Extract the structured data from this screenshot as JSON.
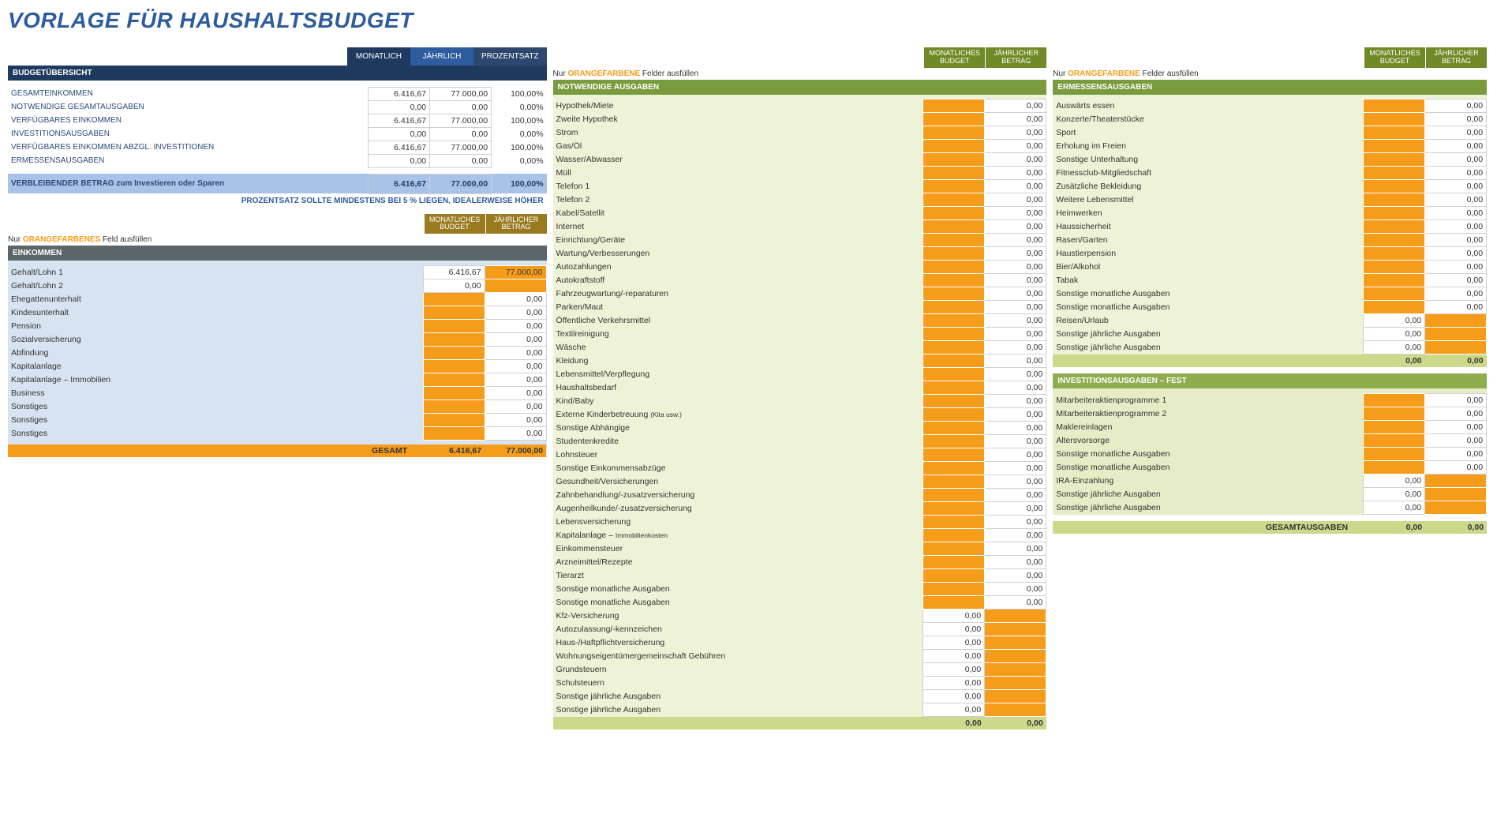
{
  "title": "VORLAGE FÜR HAUSHALTSBUDGET",
  "tabs": {
    "monthly": "MONATLICH",
    "yearly": "JÄHRLICH",
    "percent": "PROZENTSATZ"
  },
  "colhdr": {
    "monthly": "MONATLICHES BUDGET",
    "yearly": "JÄHRLICHER BETRAG"
  },
  "fill_note_prefix": "Nur ",
  "fill_note_orange": "ORANGEFARBENE",
  "fill_note_orange_s": "ORANGEFARBENES",
  "fill_note_suffix": " Felder ausfüllen",
  "fill_note_suffix_s": " Feld ausfüllen",
  "overview": {
    "header": "BUDGETÜBERSICHT",
    "rows": [
      {
        "label": "GESAMTEINKOMMEN",
        "m": "6.416,67",
        "y": "77.000,00",
        "p": "100,00%"
      },
      {
        "label": "NOTWENDIGE GESAMTAUSGABEN",
        "m": "0,00",
        "y": "0,00",
        "p": "0,00%"
      },
      {
        "label": "VERFÜGBARES EINKOMMEN",
        "m": "6.416,67",
        "y": "77.000,00",
        "p": "100,00%"
      },
      {
        "label": "INVESTITIONSAUSGABEN",
        "m": "0,00",
        "y": "0,00",
        "p": "0,00%"
      },
      {
        "label": "VERFÜGBARES EINKOMMEN ABZGL. INVESTITIONEN",
        "m": "6.416,67",
        "y": "77.000,00",
        "p": "100,00%"
      },
      {
        "label": "ERMESSENSAUSGABEN",
        "m": "0,00",
        "y": "0,00",
        "p": "0,00%"
      }
    ],
    "remaining_label": "VERBLEIBENDER BETRAG zum Investieren oder Sparen",
    "remaining": {
      "m": "6.416,67",
      "y": "77.000,00",
      "p": "100,00%"
    },
    "hint": "PROZENTSATZ SOLLTE MINDESTENS BEI 5 % LIEGEN, IDEALERWEISE HÖHER"
  },
  "income": {
    "header": "EINKOMMEN",
    "rows": [
      {
        "label": "Gehalt/Lohn 1",
        "m": "6.416,67",
        "y": "77.000,00",
        "m_orange": false,
        "y_orange": true
      },
      {
        "label": "Gehalt/Lohn 2",
        "m": "0,00",
        "y": "",
        "m_orange": false,
        "y_orange": true
      },
      {
        "label": "Ehegattenunterhalt",
        "m": "",
        "y": "0,00",
        "m_orange": true,
        "y_orange": false
      },
      {
        "label": "Kindesunterhalt",
        "m": "",
        "y": "0,00",
        "m_orange": true,
        "y_orange": false
      },
      {
        "label": "Pension",
        "m": "",
        "y": "0,00",
        "m_orange": true,
        "y_orange": false
      },
      {
        "label": "Sozialversicherung",
        "m": "",
        "y": "0,00",
        "m_orange": true,
        "y_orange": false
      },
      {
        "label": "Abfindung",
        "m": "",
        "y": "0,00",
        "m_orange": true,
        "y_orange": false
      },
      {
        "label": "Kapitalanlage",
        "m": "",
        "y": "0,00",
        "m_orange": true,
        "y_orange": false
      },
      {
        "label": "Kapitalanlage – Immobilien",
        "m": "",
        "y": "0,00",
        "m_orange": true,
        "y_orange": false
      },
      {
        "label": "Business",
        "m": "",
        "y": "0,00",
        "m_orange": true,
        "y_orange": false
      },
      {
        "label": "Sonstiges",
        "m": "",
        "y": "0,00",
        "m_orange": true,
        "y_orange": false
      },
      {
        "label": "Sonstiges",
        "m": "",
        "y": "0,00",
        "m_orange": true,
        "y_orange": false
      },
      {
        "label": "Sonstiges",
        "m": "",
        "y": "0,00",
        "m_orange": true,
        "y_orange": false
      }
    ],
    "total_label": "GESAMT",
    "total_m": "6.416,67",
    "total_y": "77.000,00"
  },
  "necessary": {
    "header": "NOTWENDIGE AUSGABEN",
    "rows": [
      "Hypothek/Miete",
      "Zweite Hypothek",
      "Strom",
      "Gas/Öl",
      "Wasser/Abwasser",
      "Müll",
      "Telefon 1",
      "Telefon 2",
      "Kabel/Satellit",
      "Internet",
      "Einrichtung/Geräte",
      "Wartung/Verbesserungen",
      "Autozahlungen",
      "Autokraftstoff",
      "Fahrzeugwartung/-reparaturen",
      "Parken/Maut",
      "Öffentliche Verkehrsmittel",
      "Textilreinigung",
      "Wäsche",
      "Kleidung",
      "Lebensmittel/Verpflegung",
      "Haushaltsbedarf",
      "Kind/Baby",
      "Externe Kinderbetreuung",
      "Sonstige Abhängige",
      "Studentenkredite",
      "Lohnsteuer",
      "Sonstige Einkommensabzüge",
      "Gesundheit/Versicherungen",
      "Zahnbehandlung/-zusatzversicherung",
      "Augenheilkunde/-zusatzversicherung",
      "Lebensversicherung",
      "Kapitalanlage – Immobilienkosten",
      "Einkommensteuer",
      "Arzneimittel/Rezepte",
      "Tierarzt",
      "Sonstige monatliche Ausgaben",
      "Sonstige monatliche Ausgaben"
    ],
    "rows_yearly": [
      "Kfz-Versicherung",
      "Autozulassung/-kennzeichen",
      "Haus-/Haftpflichtversicherung",
      "Wohnungseigentümergemeinschaft Gebühren",
      "Grundsteuern",
      "Schulsteuern",
      "Sonstige jährliche Ausgaben",
      "Sonstige jährliche Ausgaben"
    ],
    "kita": "(Kita usw.)",
    "zero": "0,00",
    "total_m": "0,00",
    "total_y": "0,00"
  },
  "discretionary": {
    "header": "ERMESSENSAUSGABEN",
    "rows": [
      "Auswärts essen",
      "Konzerte/Theaterstücke",
      "Sport",
      "Erholung im Freien",
      "Sonstige Unterhaltung",
      "Fitnessclub-Mitgliedschaft",
      "Zusätzliche Bekleidung",
      "Weitere Lebensmittel",
      "Heimwerken",
      "Haussicherheit",
      "Rasen/Garten",
      "Haustierpension",
      "Bier/Alkohol",
      "Tabak",
      "Sonstige monatliche Ausgaben",
      "Sonstige monatliche Ausgaben"
    ],
    "rows_yearly": [
      "Reisen/Urlaub",
      "Sonstige jährliche Ausgaben",
      "Sonstige jährliche Ausgaben"
    ],
    "zero": "0,00",
    "total_m": "0,00",
    "total_y": "0,00"
  },
  "investment": {
    "header": "INVESTITIONSAUSGABEN – FEST",
    "rows": [
      "Mitarbeiteraktienprogramme 1",
      "Mitarbeiteraktienprogramme 2",
      "Maklereinlagen",
      "Altersvorsorge",
      "Sonstige monatliche Ausgaben",
      "Sonstige monatliche Ausgaben"
    ],
    "rows_yearly": [
      "IRA-Einzahlung",
      "Sonstige jährliche Ausgaben",
      "Sonstige jährliche Ausgaben"
    ],
    "zero": "0,00",
    "grand_label": "GESAMTAUSGABEN",
    "grand_m": "0,00",
    "grand_y": "0,00"
  }
}
